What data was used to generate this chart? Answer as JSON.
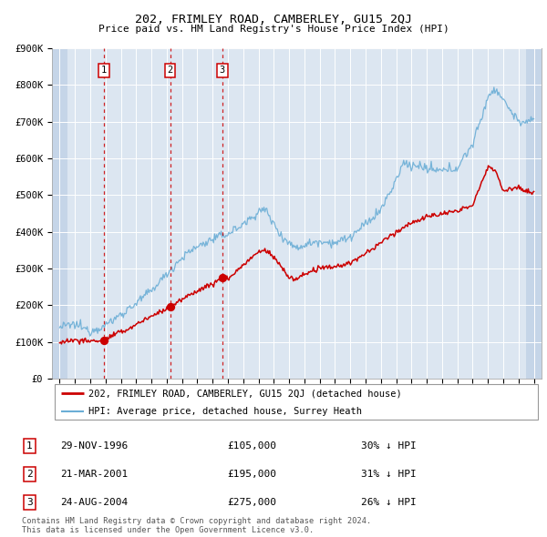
{
  "title": "202, FRIMLEY ROAD, CAMBERLEY, GU15 2QJ",
  "subtitle": "Price paid vs. HM Land Registry's House Price Index (HPI)",
  "ylim": [
    0,
    900000
  ],
  "yticks": [
    0,
    100000,
    200000,
    300000,
    400000,
    500000,
    600000,
    700000,
    800000,
    900000
  ],
  "ytick_labels": [
    "£0",
    "£100K",
    "£200K",
    "£300K",
    "£400K",
    "£500K",
    "£600K",
    "£700K",
    "£800K",
    "£900K"
  ],
  "xlim_start": 1993.5,
  "xlim_end": 2025.5,
  "plot_bg_color": "#dce6f1",
  "hatch_color": "#c5d5e8",
  "grid_color": "#ffffff",
  "sales": [
    {
      "label": "1",
      "date": "29-NOV-1996",
      "year": 1996.91,
      "price": 105000,
      "hpi_pct": "30%"
    },
    {
      "label": "2",
      "date": "21-MAR-2001",
      "year": 2001.22,
      "price": 195000,
      "hpi_pct": "31%"
    },
    {
      "label": "3",
      "date": "24-AUG-2004",
      "year": 2004.64,
      "price": 275000,
      "hpi_pct": "26%"
    }
  ],
  "legend_line1": "202, FRIMLEY ROAD, CAMBERLEY, GU15 2QJ (detached house)",
  "legend_line2": "HPI: Average price, detached house, Surrey Heath",
  "footnote": "Contains HM Land Registry data © Crown copyright and database right 2024.\nThis data is licensed under the Open Government Licence v3.0.",
  "red_line_color": "#cc0000",
  "blue_line_color": "#6baed6",
  "vline_color": "#cc0000",
  "sale_marker_color": "#cc0000"
}
